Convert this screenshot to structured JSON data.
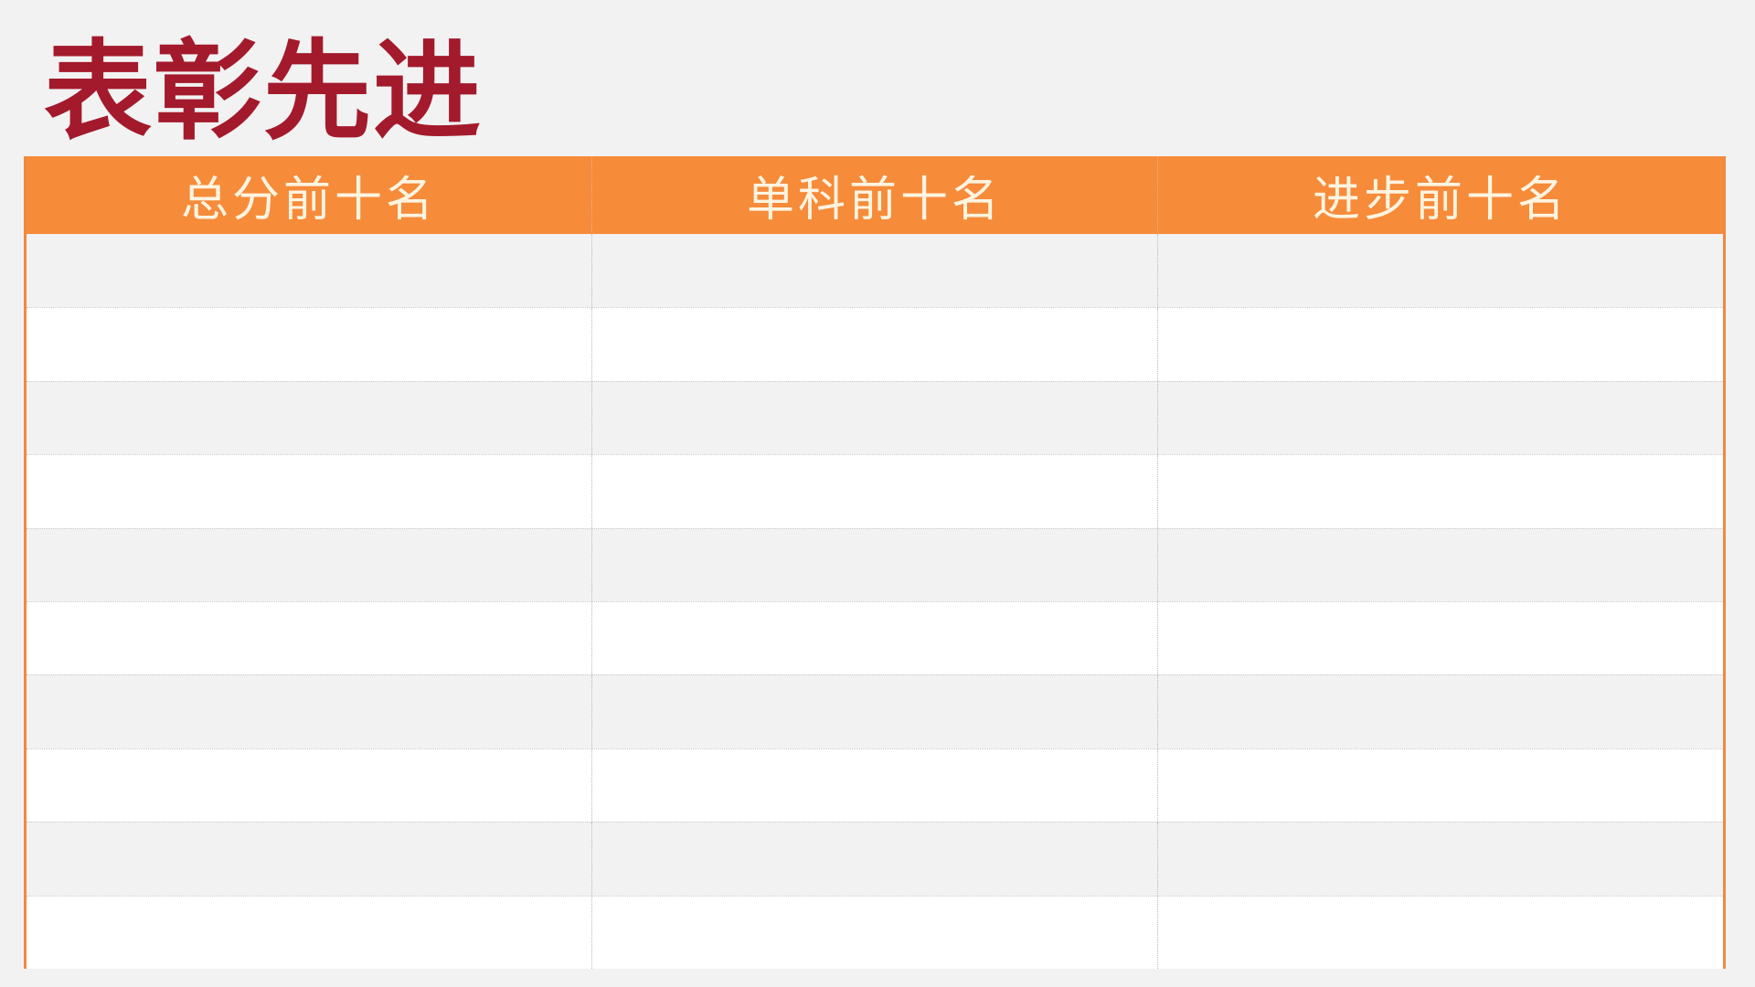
{
  "title": "表彰先进",
  "table": {
    "headers": [
      "总分前十名",
      "单科前十名",
      "进步前十名"
    ],
    "row_count": 10,
    "rows": [
      [
        "",
        "",
        ""
      ],
      [
        "",
        "",
        ""
      ],
      [
        "",
        "",
        ""
      ],
      [
        "",
        "",
        ""
      ],
      [
        "",
        "",
        ""
      ],
      [
        "",
        "",
        ""
      ],
      [
        "",
        "",
        ""
      ],
      [
        "",
        "",
        ""
      ],
      [
        "",
        "",
        ""
      ],
      [
        "",
        "",
        ""
      ]
    ]
  },
  "colors": {
    "title": "#a31a2c",
    "header_bg": "#f68b3a",
    "header_text": "#fff4e0",
    "border": "#f08a40"
  }
}
